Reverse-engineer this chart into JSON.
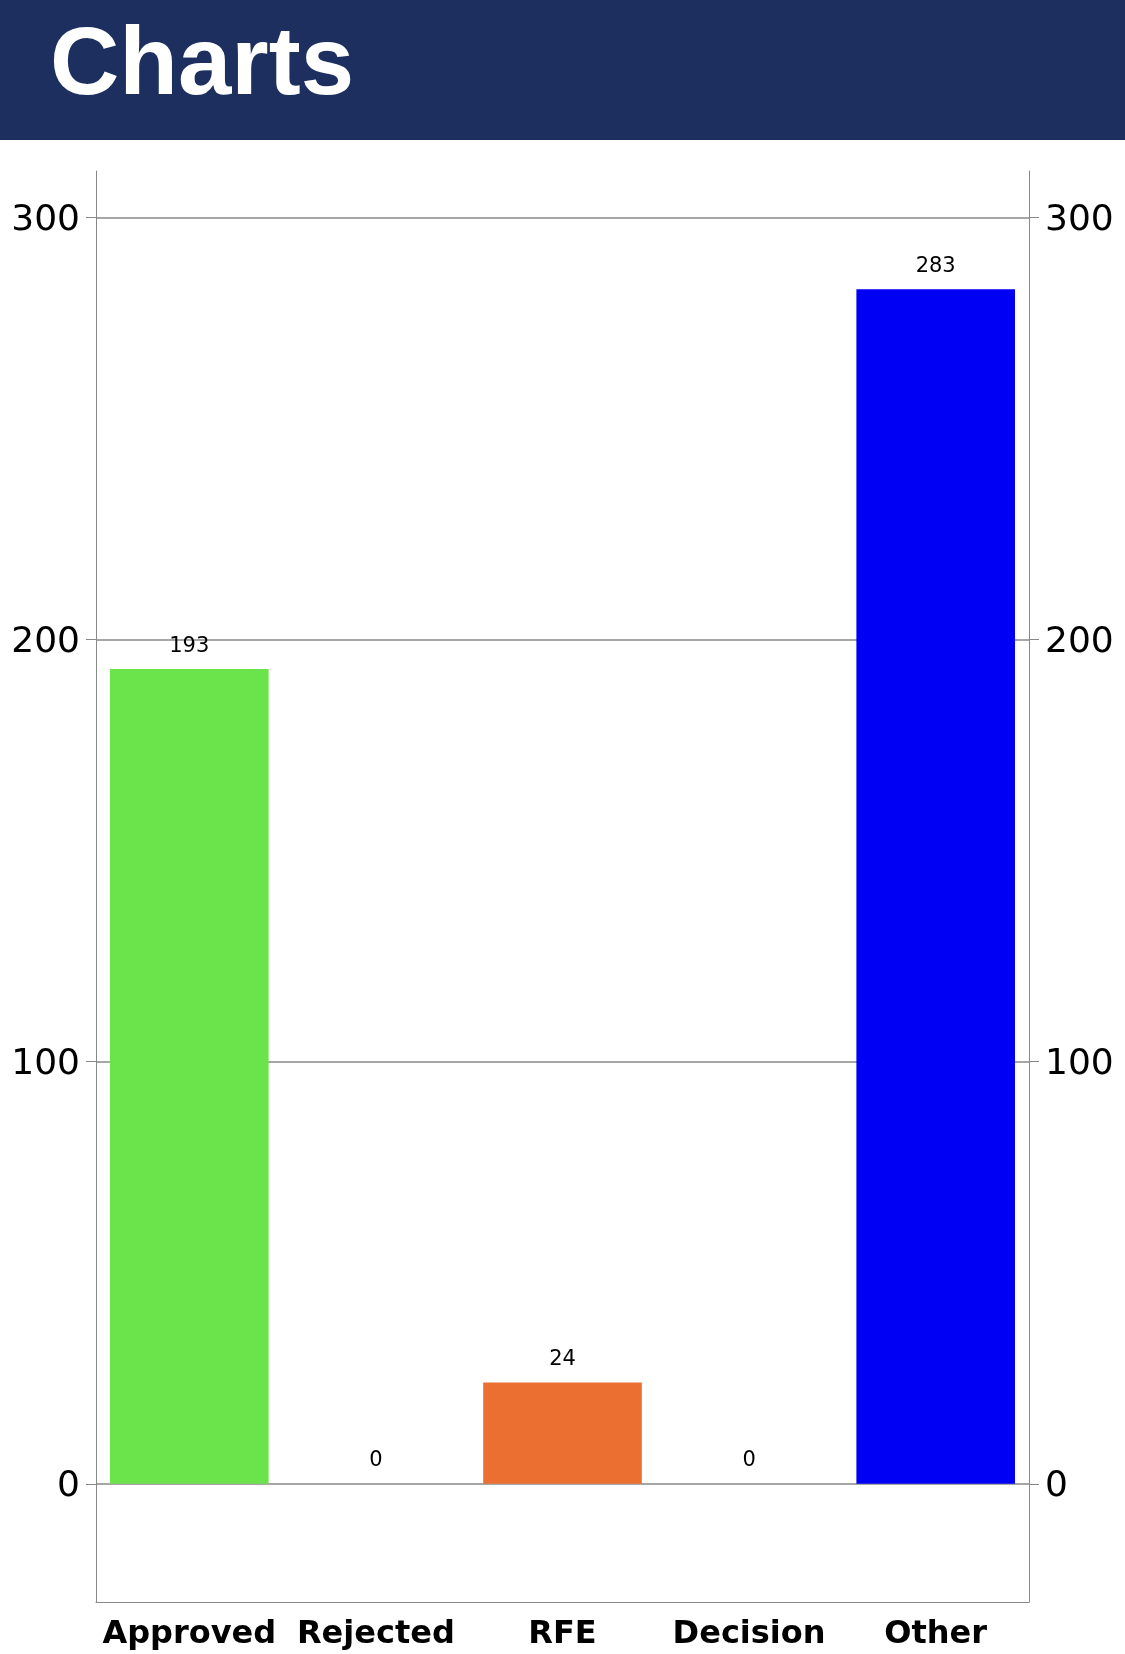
{
  "chart_data": {
    "type": "bar",
    "title": "Charts",
    "categories": [
      "Approved",
      "Rejected",
      "RFE",
      "Decision",
      "Other"
    ],
    "values": [
      193,
      0,
      24,
      0,
      283
    ],
    "colors": [
      "#6be34a",
      "#808080",
      "#ea6f30",
      "#808080",
      "#0000f5"
    ],
    "ylim": [
      -28,
      311
    ],
    "yticks": [
      0,
      100,
      200,
      300
    ],
    "y2lim": [
      -28,
      311
    ],
    "y2ticks": [
      0,
      100,
      200,
      300
    ],
    "grid": "y",
    "data_labels": true
  }
}
